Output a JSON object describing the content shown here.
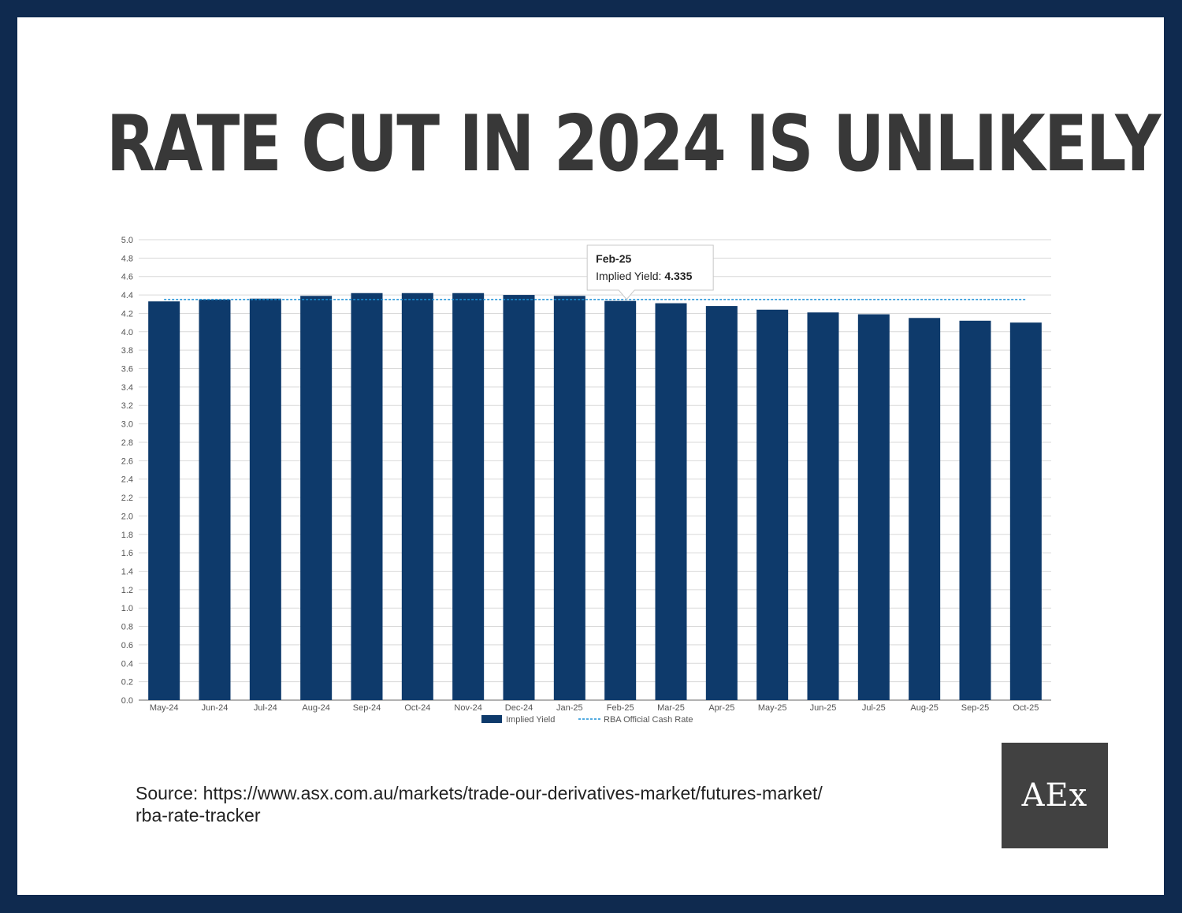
{
  "title": "RATE CUT IN 2024 IS UNLIKELY",
  "source_line1": "Source: https://www.asx.com.au/markets/trade-our-derivatives-market/futures-market/",
  "source_line2": "rba-rate-tracker",
  "logo_text": "AEx",
  "colors": {
    "border": "#0f2a4f",
    "bar": "#0e3a6b",
    "cash_rate_line": "#1a8fd6",
    "grid": "#d9d9d9",
    "axis_text": "#555555"
  },
  "chart_data": {
    "type": "bar",
    "title": "",
    "xlabel": "",
    "ylabel": "",
    "ylim": [
      0,
      5.0
    ],
    "ytick_step": 0.2,
    "grid": true,
    "categories": [
      "May-24",
      "Jun-24",
      "Jul-24",
      "Aug-24",
      "Sep-24",
      "Oct-24",
      "Nov-24",
      "Dec-24",
      "Jan-25",
      "Feb-25",
      "Mar-25",
      "Apr-25",
      "May-25",
      "Jun-25",
      "Jul-25",
      "Aug-25",
      "Sep-25",
      "Oct-25"
    ],
    "series": [
      {
        "name": "Implied Yield",
        "kind": "bar",
        "values": [
          4.33,
          4.35,
          4.36,
          4.39,
          4.42,
          4.42,
          4.42,
          4.4,
          4.39,
          4.335,
          4.31,
          4.28,
          4.24,
          4.21,
          4.19,
          4.15,
          4.12,
          4.1
        ]
      },
      {
        "name": "RBA Official Cash Rate",
        "kind": "dashed-line",
        "value": 4.35
      }
    ],
    "legend": [
      "Implied Yield",
      "RBA Official Cash Rate"
    ],
    "legend_position": "bottom-center",
    "tooltip": {
      "category": "Feb-25",
      "label": "Implied Yield:",
      "value": "4.335"
    }
  }
}
